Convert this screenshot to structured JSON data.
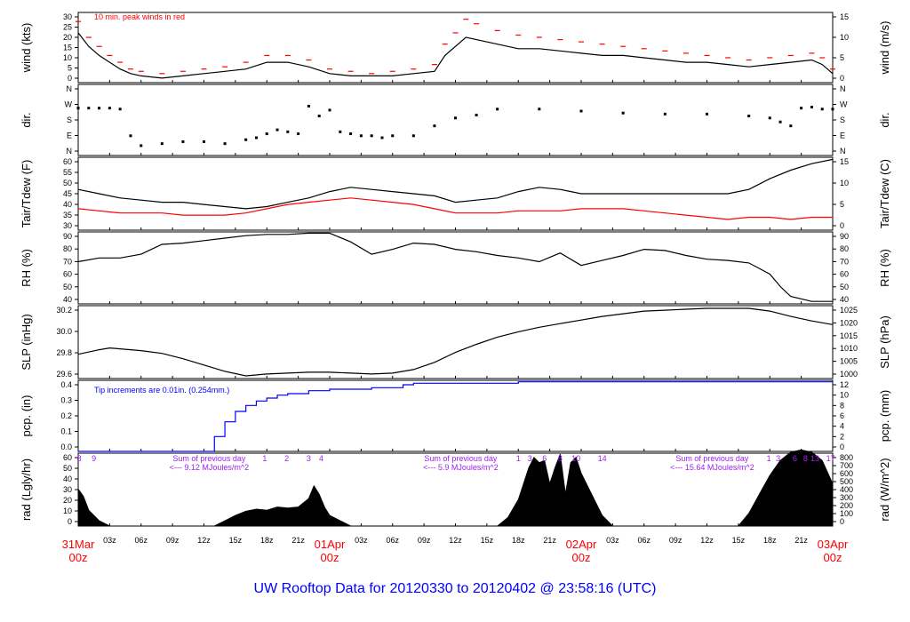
{
  "title": "UW Rooftop Data for 20120330  to  20120402 @ 23:58:16  (UTC)",
  "colors": {
    "frame": "#000000",
    "red": "#ff0000",
    "blue": "#0000ff",
    "purple": "#a020f0",
    "title": "#0000ff",
    "date_label": "#ff0000"
  },
  "x_axis": {
    "hour_ticks": [
      "03z",
      "06z",
      "09z",
      "12z",
      "15z",
      "18z",
      "21z",
      "03z",
      "06z",
      "09z",
      "12z",
      "15z",
      "18z",
      "21z",
      "03z",
      "06z",
      "09z",
      "12z",
      "15z",
      "18z",
      "21z"
    ],
    "date_labels": [
      {
        "day": "31Mar",
        "hour": "00z",
        "at": 0
      },
      {
        "day": "01Apr",
        "hour": "00z",
        "at": 24
      },
      {
        "day": "02Apr",
        "hour": "00z",
        "at": 48
      },
      {
        "day": "03Apr",
        "hour": "00z",
        "at": 72
      }
    ]
  },
  "chart_data": [
    {
      "type": "line",
      "id": "wind",
      "ylabel_left": "wind (kts)",
      "ylabel_right": "wind (m/s)",
      "left_ticks": [
        "0",
        "5",
        "10",
        "15",
        "20",
        "25",
        "30"
      ],
      "right_ticks": [
        "0",
        "5",
        "10",
        "15"
      ],
      "ylim": [
        0,
        31
      ],
      "annotation": "10 min. peak winds in red",
      "x_hours": [
        0,
        1,
        2,
        3,
        4,
        5,
        6,
        8,
        10,
        12,
        14,
        16,
        18,
        20,
        22,
        24,
        26,
        28,
        30,
        32,
        34,
        35,
        36,
        37,
        38,
        40,
        42,
        44,
        46,
        48,
        50,
        52,
        54,
        56,
        58,
        60,
        62,
        64,
        66,
        68,
        70,
        71,
        72
      ],
      "series": [
        {
          "values": [
            22,
            16,
            12,
            9,
            6,
            4,
            3,
            2,
            3,
            4,
            5,
            6,
            9,
            9,
            7,
            4,
            3,
            3,
            3,
            4,
            5,
            12,
            16,
            20,
            19,
            17,
            15,
            15,
            14,
            13,
            12,
            12,
            11,
            10,
            9,
            9,
            8,
            7,
            8,
            9,
            10,
            8,
            4
          ]
        },
        {
          "values": [
            27,
            20,
            16,
            12,
            9,
            6,
            5,
            4,
            5,
            6,
            7,
            9,
            12,
            12,
            10,
            6,
            5,
            4,
            5,
            6,
            8,
            17,
            22,
            28,
            26,
            23,
            21,
            20,
            19,
            18,
            17,
            16,
            15,
            14,
            13,
            12,
            11,
            10,
            11,
            12,
            13,
            11,
            6
          ]
        }
      ]
    },
    {
      "type": "scatter",
      "id": "dir",
      "ylabel_left": "dir.",
      "ylabel_right": "dir.",
      "left_ticks": [
        "N",
        "E",
        "S",
        "W",
        "N"
      ],
      "right_ticks": [
        "N",
        "E",
        "S",
        "W",
        "N"
      ],
      "ylim": [
        0,
        360
      ],
      "x_hours": [
        0,
        1,
        2,
        3,
        4,
        5,
        6,
        8,
        10,
        12,
        14,
        16,
        17,
        18,
        19,
        20,
        21,
        22,
        23,
        24,
        25,
        26,
        27,
        28,
        29,
        30,
        32,
        34,
        36,
        38,
        40,
        44,
        48,
        52,
        56,
        60,
        64,
        66,
        67,
        68,
        69,
        70,
        71,
        72
      ],
      "series": [
        {
          "values": [
            240,
            240,
            240,
            240,
            235,
            100,
            50,
            60,
            70,
            70,
            60,
            80,
            90,
            110,
            130,
            120,
            110,
            250,
            200,
            230,
            120,
            110,
            100,
            100,
            90,
            100,
            100,
            150,
            190,
            205,
            235,
            235,
            225,
            215,
            210,
            210,
            200,
            190,
            170,
            150,
            240,
            245,
            235,
            235
          ]
        }
      ]
    },
    {
      "type": "line",
      "id": "tair",
      "ylabel_left": "Tair/Tdew (F)",
      "ylabel_right": "Tair/Tdew (C)",
      "left_ticks": [
        "30",
        "35",
        "40",
        "45",
        "50",
        "55",
        "60"
      ],
      "right_ticks": [
        "0",
        "5",
        "10",
        "15"
      ],
      "ylim": [
        29,
        63
      ],
      "x_hours": [
        0,
        2,
        4,
        6,
        8,
        10,
        12,
        14,
        16,
        18,
        20,
        22,
        24,
        26,
        28,
        30,
        32,
        34,
        36,
        38,
        40,
        42,
        44,
        46,
        48,
        50,
        52,
        54,
        56,
        58,
        60,
        62,
        64,
        66,
        68,
        70,
        72
      ],
      "series": [
        {
          "values": [
            48,
            46,
            44,
            43,
            42,
            42,
            41,
            40,
            39,
            40,
            42,
            44,
            47,
            49,
            48,
            47,
            46,
            45,
            42,
            43,
            44,
            47,
            49,
            48,
            46,
            46,
            46,
            46,
            46,
            46,
            46,
            46,
            48,
            53,
            57,
            60,
            62
          ]
        },
        {
          "values": [
            39,
            38,
            37,
            37,
            37,
            36,
            36,
            36,
            37,
            39,
            41,
            42,
            43,
            44,
            43,
            42,
            41,
            39,
            37,
            37,
            37,
            38,
            38,
            38,
            39,
            39,
            39,
            38,
            37,
            36,
            35,
            34,
            35,
            35,
            34,
            35,
            35
          ]
        }
      ]
    },
    {
      "type": "line",
      "id": "rh",
      "ylabel_left": "RH (%)",
      "ylabel_right": "RH (%)",
      "left_ticks": [
        "40",
        "50",
        "60",
        "70",
        "80",
        "90"
      ],
      "right_ticks": [
        "40",
        "50",
        "60",
        "70",
        "80",
        "90"
      ],
      "ylim": [
        36,
        94
      ],
      "x_hours": [
        0,
        2,
        4,
        6,
        8,
        10,
        12,
        14,
        16,
        18,
        20,
        22,
        24,
        26,
        28,
        30,
        32,
        34,
        36,
        38,
        40,
        42,
        44,
        46,
        48,
        50,
        52,
        54,
        56,
        58,
        60,
        62,
        64,
        66,
        67,
        68,
        70,
        72
      ],
      "series": [
        {
          "values": [
            70,
            73,
            73,
            76,
            84,
            85,
            87,
            89,
            91,
            92,
            92,
            93,
            93,
            86,
            76,
            80,
            85,
            84,
            80,
            78,
            75,
            73,
            70,
            77,
            67,
            71,
            75,
            80,
            79,
            75,
            72,
            71,
            69,
            60,
            50,
            42,
            38,
            38
          ]
        }
      ]
    },
    {
      "type": "line",
      "id": "slp",
      "ylabel_left": "SLP (inHg)",
      "ylabel_right": "SLP (hPa)",
      "left_ticks": [
        "29.6",
        "29.8",
        "30.0",
        "30.2"
      ],
      "right_ticks": [
        "1000",
        "1005",
        "1010",
        "1015",
        "1020",
        "1025"
      ],
      "ylim": [
        29.48,
        30.29
      ],
      "x_hours": [
        0,
        2,
        3,
        4,
        6,
        8,
        10,
        12,
        14,
        16,
        18,
        20,
        22,
        24,
        26,
        28,
        30,
        32,
        34,
        36,
        38,
        40,
        42,
        44,
        46,
        48,
        50,
        52,
        54,
        56,
        58,
        60,
        62,
        64,
        66,
        68,
        70,
        72
      ],
      "series": [
        {
          "values": [
            29.75,
            29.8,
            29.82,
            29.81,
            29.79,
            29.76,
            29.7,
            29.63,
            29.56,
            29.51,
            29.53,
            29.54,
            29.55,
            29.55,
            29.54,
            29.53,
            29.54,
            29.58,
            29.66,
            29.77,
            29.86,
            29.94,
            30.0,
            30.05,
            30.09,
            30.13,
            30.17,
            30.2,
            30.23,
            30.24,
            30.25,
            30.26,
            30.26,
            30.26,
            30.23,
            30.17,
            30.12,
            30.08
          ]
        }
      ]
    },
    {
      "type": "area",
      "id": "pcp",
      "ylabel_left": "pcp. (in)",
      "ylabel_right": "pcp. (mm)",
      "left_ticks": [
        "0.0",
        "0.1",
        "0.2",
        "0.3",
        "0.4"
      ],
      "right_ticks": [
        "0",
        "2",
        "4",
        "6",
        "8",
        "10",
        "12"
      ],
      "ylim": [
        0,
        0.48
      ],
      "annotation": "Tip increments are 0.01in. (0.254mm.)",
      "x_hours": [
        0,
        12,
        13,
        14,
        15,
        16,
        17,
        18,
        19,
        20,
        22,
        24,
        26,
        28,
        30,
        31,
        32,
        40,
        42,
        46,
        48,
        72
      ],
      "series": [
        {
          "values": [
            0,
            0,
            0.1,
            0.2,
            0.27,
            0.31,
            0.34,
            0.36,
            0.38,
            0.39,
            0.41,
            0.42,
            0.42,
            0.43,
            0.43,
            0.45,
            0.46,
            0.46,
            0.47,
            0.47,
            0.47,
            0.47
          ]
        }
      ]
    },
    {
      "type": "area",
      "id": "rad",
      "ylabel_left": "rad (Lgly/hr)",
      "ylabel_right": "rad (W/m^2)",
      "left_ticks": [
        "0",
        "10",
        "20",
        "30",
        "40",
        "50",
        "60"
      ],
      "right_ticks": [
        "0",
        "100",
        "200",
        "300",
        "400",
        "500",
        "600",
        "700",
        "800"
      ],
      "ylim": [
        0,
        69
      ],
      "annotations": [
        {
          "text": "Sum of previous day",
          "sub": "<--- 9.12 MJoules/m^2",
          "at": 12.5
        },
        {
          "text": "Sum of previous day",
          "sub": "<--- 5.9 MJoules/m^2",
          "at": 36.5
        },
        {
          "text": "Sum of previous day",
          "sub": "<--- 15.64 MJoules/m^2",
          "at": 60.5
        }
      ],
      "marker_labels": [
        {
          "text": "8",
          "at": 0.1
        },
        {
          "text": "9",
          "at": 1.5
        },
        {
          "text": "1",
          "at": 17.8
        },
        {
          "text": "2",
          "at": 19.9
        },
        {
          "text": "3",
          "at": 22.0
        },
        {
          "text": "4",
          "at": 23.2
        },
        {
          "text": "1",
          "at": 42.0
        },
        {
          "text": "3",
          "at": 43.1
        },
        {
          "text": "6",
          "at": 44.5
        },
        {
          "text": "8",
          "at": 46.0
        },
        {
          "text": "10",
          "at": 47.5
        },
        {
          "text": "14",
          "at": 50.0
        },
        {
          "text": "1",
          "at": 65.9
        },
        {
          "text": "3",
          "at": 66.8
        },
        {
          "text": "6",
          "at": 68.4
        },
        {
          "text": "8",
          "at": 69.4
        },
        {
          "text": "13",
          "at": 70.3
        },
        {
          "text": "17",
          "at": 71.8
        }
      ],
      "x_hours": [
        0,
        0.5,
        1,
        2,
        3,
        13,
        14,
        15,
        16,
        17,
        18,
        19,
        20,
        21,
        22,
        22.5,
        23,
        23.5,
        24,
        25,
        26,
        40,
        41,
        42,
        43,
        43.5,
        44,
        44.5,
        45,
        45.5,
        46,
        46.5,
        47,
        47.5,
        48,
        49,
        50,
        51,
        63,
        64,
        65,
        66,
        67,
        68,
        69,
        70,
        71,
        72
      ],
      "series": [
        {
          "values": [
            35,
            28,
            15,
            5,
            0,
            0,
            5,
            10,
            14,
            16,
            15,
            18,
            17,
            18,
            26,
            38,
            30,
            18,
            10,
            5,
            0,
            0,
            8,
            25,
            55,
            65,
            60,
            62,
            40,
            55,
            68,
            30,
            60,
            65,
            50,
            30,
            10,
            0,
            0,
            12,
            30,
            48,
            62,
            70,
            72,
            70,
            62,
            40
          ]
        }
      ]
    }
  ]
}
